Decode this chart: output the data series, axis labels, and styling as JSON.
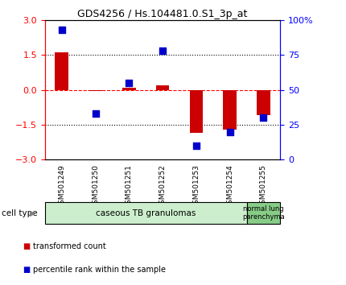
{
  "title": "GDS4256 / Hs.104481.0.S1_3p_at",
  "samples": [
    "GSM501249",
    "GSM501250",
    "GSM501251",
    "GSM501252",
    "GSM501253",
    "GSM501254",
    "GSM501255"
  ],
  "red_values": [
    1.6,
    -0.05,
    0.1,
    0.2,
    -1.85,
    -1.7,
    -1.1
  ],
  "blue_values_pct": [
    93,
    33,
    55,
    78,
    10,
    20,
    30
  ],
  "ylim_left": [
    -3,
    3
  ],
  "ylim_right": [
    0,
    100
  ],
  "left_ticks": [
    -3,
    -1.5,
    0,
    1.5,
    3
  ],
  "right_ticks": [
    0,
    25,
    50,
    75,
    100
  ],
  "group1_label": "caseous TB granulomas",
  "group2_label": "normal lung\nparenchyma",
  "cell_type_label": "cell type",
  "legend_red": "transformed count",
  "legend_blue": "percentile rank within the sample",
  "bar_color": "#cc0000",
  "dot_color": "#0000cc",
  "group1_bg": "#cceecc",
  "group2_bg": "#88cc88",
  "sample_bg": "#cccccc",
  "bar_width": 0.4,
  "dot_size": 35
}
